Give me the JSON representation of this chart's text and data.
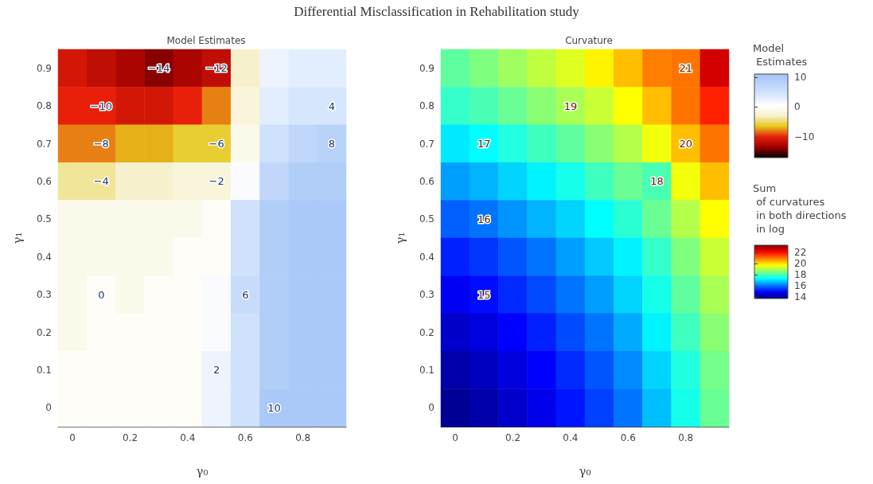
{
  "chart_data": [
    {
      "type": "heatmap",
      "title": "Differential Misclassification in Rehabilitation study",
      "subtitle": "Model Estimates",
      "xlabel": "γ₀",
      "ylabel": "γ₁",
      "clabel": "Model\n Estimates",
      "categories": [
        "0",
        null,
        "0.2",
        null,
        "0.4",
        null,
        "0.6",
        null,
        "0.8",
        null
      ],
      "y_categories": [
        "0.9",
        "0.8",
        "0.7",
        "0.6",
        "0.5",
        "0.4",
        "0.3",
        "0.2",
        "0.1",
        "0"
      ],
      "cells": [
        [
          -11,
          -12,
          -13,
          -14,
          -13,
          -12,
          -3,
          2,
          3,
          3
        ],
        [
          -10,
          -10,
          -11,
          -11,
          -10,
          -8,
          -2,
          3,
          4,
          4
        ],
        [
          -8,
          -8,
          -7,
          -7,
          -6,
          -6,
          -1,
          5,
          7,
          8
        ],
        [
          -4,
          -4,
          -3,
          -3,
          -2,
          -2,
          1,
          7,
          9,
          9
        ],
        [
          -1,
          -1,
          -1,
          -1,
          -1,
          0,
          5,
          9,
          10,
          10
        ],
        [
          -1,
          -1,
          -1,
          -1,
          0,
          0,
          5,
          9,
          10,
          10
        ],
        [
          -1,
          0,
          -1,
          0,
          0,
          1,
          6,
          9,
          10,
          10
        ],
        [
          -1,
          0,
          0,
          0,
          0,
          1,
          5,
          9,
          10,
          10
        ],
        [
          0,
          0,
          0,
          0,
          0,
          2,
          5,
          9,
          10,
          10
        ],
        [
          0,
          0,
          0,
          0,
          0,
          2,
          5,
          10,
          10,
          10
        ]
      ],
      "cell_labels": [
        [
          null,
          null,
          null,
          "−14",
          null,
          "−12",
          null,
          null,
          null,
          null
        ],
        [
          null,
          "−10",
          null,
          null,
          null,
          null,
          null,
          null,
          null,
          "4"
        ],
        [
          null,
          "−8",
          null,
          null,
          null,
          "−6",
          null,
          null,
          null,
          "8"
        ],
        [
          null,
          "−4",
          null,
          null,
          null,
          "−2",
          null,
          null,
          null,
          null
        ],
        [
          null,
          null,
          null,
          null,
          null,
          null,
          null,
          null,
          null,
          null
        ],
        [
          null,
          null,
          null,
          null,
          null,
          null,
          null,
          null,
          null,
          null
        ],
        [
          null,
          "0",
          null,
          null,
          null,
          null,
          "6",
          null,
          null,
          null
        ],
        [
          null,
          null,
          null,
          null,
          null,
          null,
          null,
          null,
          null,
          null
        ],
        [
          null,
          null,
          null,
          null,
          null,
          "2",
          null,
          null,
          null,
          null
        ],
        [
          null,
          null,
          null,
          null,
          null,
          null,
          null,
          "10",
          null,
          null
        ]
      ],
      "clim": [
        -17,
        11
      ],
      "cticks": [
        -10,
        0,
        10
      ]
    },
    {
      "type": "heatmap",
      "subtitle": "Curvature",
      "xlabel": "γ₀",
      "ylabel": "γ₁",
      "clabel": "Sum\n of curvatures\n in both directions\n in log",
      "categories": [
        "0",
        null,
        "0.2",
        null,
        "0.4",
        null,
        "0.6",
        null,
        "0.8",
        null
      ],
      "y_categories": [
        "0.9",
        "0.8",
        "0.7",
        "0.6",
        "0.5",
        "0.4",
        "0.3",
        "0.2",
        "0.1",
        "0"
      ],
      "cells": [
        [
          18.2,
          18.5,
          18.8,
          19.1,
          19.4,
          19.8,
          20.3,
          20.9,
          21,
          22.5
        ],
        [
          17.8,
          18.0,
          18.3,
          18.6,
          18.9,
          19.2,
          19.7,
          20.3,
          21.0,
          21.8
        ],
        [
          17.1,
          17.3,
          17.6,
          17.9,
          18.2,
          18.6,
          19.0,
          19.6,
          20.3,
          21.0
        ],
        [
          16.4,
          16.6,
          16.9,
          17.2,
          17.5,
          17.9,
          18.3,
          18,
          19.6,
          20.3
        ],
        [
          15.8,
          16.0,
          16.3,
          16.6,
          16.9,
          17.3,
          17.7,
          18.3,
          19.0,
          19.7
        ],
        [
          15.2,
          15.4,
          15.7,
          16.0,
          16.4,
          16.8,
          17.2,
          17.8,
          18.5,
          19.2
        ],
        [
          14.8,
          15.0,
          15.3,
          15.6,
          16.0,
          16.4,
          16.9,
          17.5,
          18.2,
          18.9
        ],
        [
          14.4,
          14.6,
          14.9,
          15.2,
          15.6,
          16.0,
          16.5,
          17.2,
          17.9,
          18.6
        ],
        [
          14.1,
          14.3,
          14.6,
          14.9,
          15.3,
          15.7,
          16.2,
          16.9,
          17.6,
          18.4
        ],
        [
          13.9,
          14.1,
          14.4,
          14.7,
          15.1,
          15.5,
          16.0,
          16.7,
          17.5,
          18.3
        ]
      ],
      "cell_labels": [
        [
          null,
          null,
          null,
          null,
          null,
          null,
          null,
          null,
          "21",
          null
        ],
        [
          null,
          null,
          null,
          null,
          "19",
          null,
          null,
          null,
          null,
          null
        ],
        [
          null,
          "17",
          null,
          null,
          null,
          null,
          null,
          null,
          "20",
          null
        ],
        [
          null,
          null,
          null,
          null,
          null,
          null,
          null,
          "18",
          null,
          null
        ],
        [
          null,
          "16",
          null,
          null,
          null,
          null,
          null,
          null,
          null,
          null
        ],
        [
          null,
          null,
          null,
          null,
          null,
          null,
          null,
          null,
          null,
          null
        ],
        [
          null,
          "15",
          null,
          null,
          null,
          null,
          null,
          null,
          null,
          null
        ],
        [
          null,
          null,
          null,
          null,
          null,
          null,
          null,
          null,
          null,
          null
        ],
        [
          null,
          null,
          null,
          null,
          null,
          null,
          null,
          null,
          null,
          null
        ],
        [
          null,
          null,
          null,
          null,
          null,
          null,
          null,
          null,
          null,
          null
        ]
      ],
      "clim": [
        13.7,
        23.3
      ],
      "cticks": [
        14,
        16,
        18,
        20,
        22
      ]
    }
  ]
}
